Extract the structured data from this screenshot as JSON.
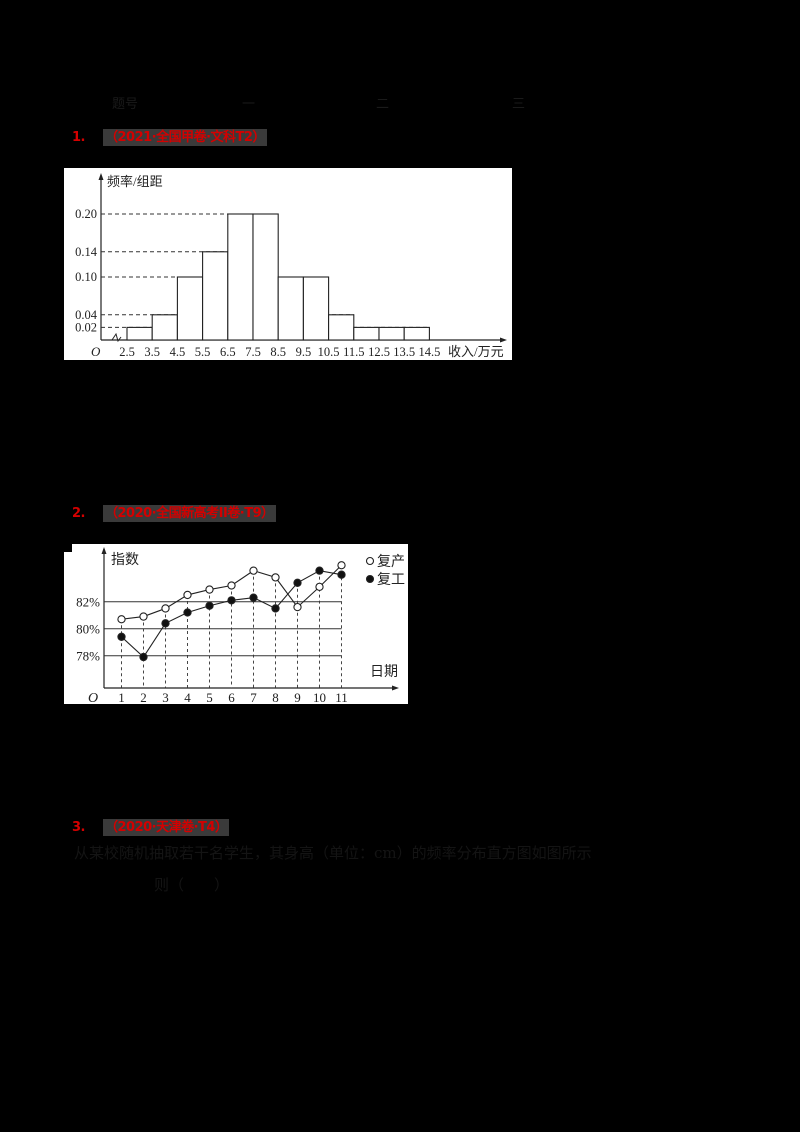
{
  "header_line": {
    "glyphs": [
      "题号",
      "一",
      "二",
      "三"
    ]
  },
  "questions": [
    {
      "number": "1.",
      "source": "（2021·全国甲卷·文科T2）",
      "color": "#d40000"
    },
    {
      "number": "2.",
      "source": "（2020·全国新高考II卷·T9）",
      "color": "#d40000"
    },
    {
      "number": "3.",
      "source": "（2020·天津卷·T4）",
      "color": "#d40000"
    }
  ],
  "q3_body": {
    "line1": "从某校随机抽取若干名学生，其身高（单位：cm）的频率分布直方图如图所示",
    "line2": "则（　　）"
  },
  "chart_data": [
    {
      "type": "bar",
      "subtype": "histogram",
      "title": "",
      "xlabel": "收入/万元",
      "ylabel": "频率/组距",
      "origin_label": "O",
      "bin_edges": [
        2.5,
        3.5,
        4.5,
        5.5,
        6.5,
        7.5,
        8.5,
        9.5,
        10.5,
        11.5,
        12.5,
        13.5,
        14.5
      ],
      "categories": [
        "2.5-3.5",
        "3.5-4.5",
        "4.5-5.5",
        "5.5-6.5",
        "6.5-7.5",
        "7.5-8.5",
        "8.5-9.5",
        "9.5-10.5",
        "10.5-11.5",
        "11.5-12.5",
        "12.5-13.5",
        "13.5-14.5"
      ],
      "values": [
        0.02,
        0.04,
        0.1,
        0.14,
        0.2,
        0.2,
        0.1,
        0.1,
        0.04,
        0.02,
        0.02,
        0.02
      ],
      "y_ticks": [
        "0.02",
        "0.04",
        "0.10",
        "0.14",
        "0.20"
      ],
      "x_ticks": [
        "2.5",
        "3.5",
        "4.5",
        "5.5",
        "6.5",
        "7.5",
        "8.5",
        "9.5",
        "10.5",
        "11.5",
        "12.5",
        "13.5",
        "14.5"
      ],
      "grid": "dashed reference lines at y tick values",
      "ylim": [
        0,
        0.24
      ]
    },
    {
      "type": "line",
      "title": "",
      "xlabel": "日期",
      "ylabel": "指数",
      "origin_label": "O",
      "x": [
        1,
        2,
        3,
        4,
        5,
        6,
        7,
        8,
        9,
        10,
        11
      ],
      "series": [
        {
          "name": "复产",
          "marker": "open-circle",
          "values": [
            80.7,
            80.9,
            81.5,
            82.5,
            82.9,
            83.2,
            84.3,
            83.8,
            81.6,
            83.1,
            84.7
          ]
        },
        {
          "name": "复工",
          "marker": "filled-circle",
          "values": [
            79.4,
            77.9,
            80.4,
            81.2,
            81.7,
            82.1,
            82.3,
            81.5,
            83.4,
            84.3,
            84.0
          ]
        }
      ],
      "y_ticks": [
        "78%",
        "80%",
        "82%"
      ],
      "x_ticks": [
        "1",
        "2",
        "3",
        "4",
        "5",
        "6",
        "7",
        "8",
        "9",
        "10",
        "11"
      ],
      "legend": {
        "position": "top-right",
        "entries": [
          "复产",
          "复工"
        ]
      },
      "grid": "horizontal lines at 78%, 80%, 82%; dashed vertical drop lines at each date"
    }
  ]
}
